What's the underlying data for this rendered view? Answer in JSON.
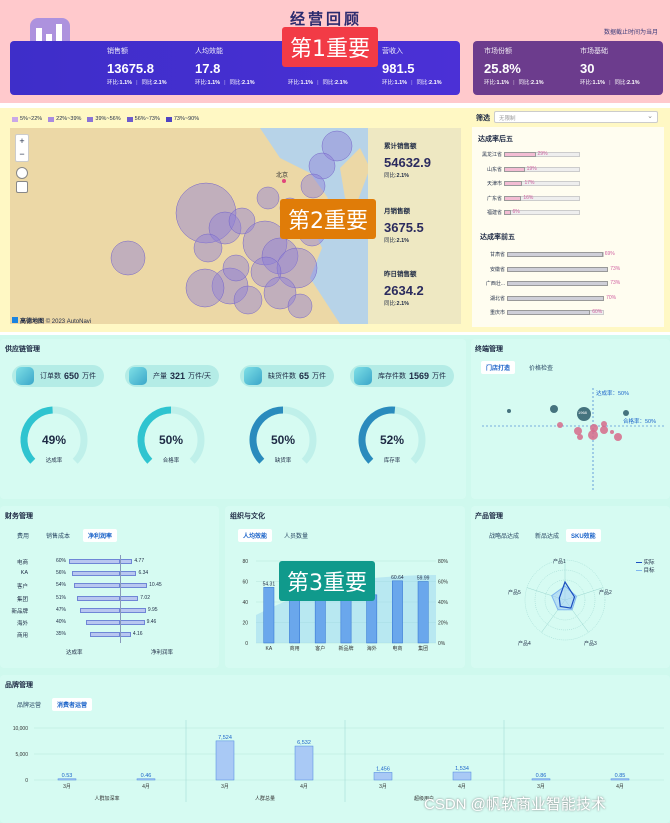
{
  "header": {
    "title": "经营回顾",
    "date_note": "数据截止时间为当月"
  },
  "kpis": [
    {
      "label": "销售额",
      "value": "13675.8",
      "mom_label": "环比:",
      "mom": "1.1%",
      "yoy_label": "同比:",
      "yoy": "2.1%"
    },
    {
      "label": "人均效能",
      "value": "17.8",
      "mom_label": "环比:",
      "mom": "1.1%",
      "yoy_label": "同比:",
      "yoy": "2.1%"
    },
    {
      "label": "",
      "value": "",
      "mom_label": "环比:",
      "mom": "1.1%",
      "yoy_label": "同比:",
      "yoy": "2.1%"
    },
    {
      "label": "营收入",
      "value": "981.5",
      "mom_label": "环比:",
      "mom": "1.1%",
      "yoy_label": "同比:",
      "yoy": "2.1%"
    },
    {
      "label": "市场份额",
      "value": "25.8%",
      "mom_label": "环比:",
      "mom": "1.1%",
      "yoy_label": "同比:",
      "yoy": "2.1%"
    },
    {
      "label": "市场基础",
      "value": "30",
      "mom_label": "环比:",
      "mom": "1.1%",
      "yoy_label": "同比:",
      "yoy": "2.1%"
    }
  ],
  "badges": {
    "b1": "第1重要",
    "b2": "第2重要",
    "b3": "第3重要"
  },
  "map": {
    "legend": [
      "5%~22%",
      "22%~39%",
      "39%~56%",
      "56%~73%",
      "73%~90%"
    ],
    "legend_colors": [
      "#c9a8e8",
      "#a98ce0",
      "#8b74d6",
      "#6d5ccc",
      "#4f44c2"
    ],
    "city": "北京",
    "attribution": "© 2023 AutoNavi",
    "brand": "高德地图",
    "stats": [
      {
        "label": "累计销售额",
        "value": "54632.9",
        "sub": "同比:",
        "sub_v": "2.1%"
      },
      {
        "label": "月销售额",
        "value": "3675.5",
        "sub": "同比:",
        "sub_v": "2.1%"
      },
      {
        "label": "昨日销售额",
        "value": "2634.2",
        "sub": "同比:",
        "sub_v": "2.1%"
      }
    ]
  },
  "filter": {
    "label": "筛选",
    "placeholder": "无限制"
  },
  "bottom5": {
    "title": "达成率后五",
    "rows": [
      {
        "name": "黑龙江省",
        "pct": "29%",
        "v": 29
      },
      {
        "name": "山东省",
        "pct": "19%",
        "v": 19
      },
      {
        "name": "天津市",
        "pct": "17%",
        "v": 17
      },
      {
        "name": "广东省",
        "pct": "16%",
        "v": 16
      },
      {
        "name": "福建省",
        "pct": "6%",
        "v": 6
      }
    ]
  },
  "top5": {
    "title": "达成率前五",
    "rows": [
      {
        "name": "甘肃省",
        "pct": "69%",
        "v": 69
      },
      {
        "name": "安徽省",
        "pct": "73%",
        "v": 73
      },
      {
        "name": "广西壮...",
        "pct": "73%",
        "v": 73
      },
      {
        "name": "湖北省",
        "pct": "70%",
        "v": 70
      },
      {
        "name": "重庆市",
        "pct": "60%",
        "v": 60
      }
    ]
  },
  "supply": {
    "title": "供应链管理",
    "pills": [
      {
        "label": "订单数",
        "value": "650",
        "unit": "万件"
      },
      {
        "label": "产量",
        "value": "321",
        "unit": "万件/天"
      },
      {
        "label": "缺货件数",
        "value": "65",
        "unit": "万件"
      },
      {
        "label": "库存件数",
        "value": "1569",
        "unit": "万件"
      }
    ],
    "gauges": [
      {
        "value": "49%",
        "label": "达成率",
        "pct": 49,
        "color": "#2fc4d0"
      },
      {
        "value": "50%",
        "label": "合格率",
        "pct": 50,
        "color": "#2fc4d0"
      },
      {
        "value": "50%",
        "label": "缺货率",
        "pct": 50,
        "color": "#2a8bbd"
      },
      {
        "value": "52%",
        "label": "库存率",
        "pct": 52,
        "color": "#2a8bbd"
      }
    ]
  },
  "terminal": {
    "title": "终端管理",
    "tabs": [
      "门店打造",
      "价格检查"
    ],
    "ref_h": "达成率：50%",
    "ref_v": "合格率：50%",
    "bubble_label": "1968"
  },
  "finance": {
    "title": "财务管理",
    "tabs": [
      "费用",
      "销售成本",
      "净利润率"
    ],
    "rows": [
      {
        "name": "电商",
        "pct": "60%",
        "val": "4.77",
        "l": 60,
        "r": 4.77
      },
      {
        "name": "KA",
        "pct": "56%",
        "val": "6.34",
        "l": 56,
        "r": 6.34
      },
      {
        "name": "客户",
        "pct": "54%",
        "val": "10.45",
        "l": 54,
        "r": 10.45
      },
      {
        "name": "集团",
        "pct": "51%",
        "val": "7.02",
        "l": 51,
        "r": 7.02
      },
      {
        "name": "新品牌",
        "pct": "47%",
        "val": "9.95",
        "l": 47,
        "r": 9.95
      },
      {
        "name": "海外",
        "pct": "40%",
        "val": "9.46",
        "l": 40,
        "r": 9.46
      },
      {
        "name": "商用",
        "pct": "35%",
        "val": "4.16",
        "l": 35,
        "r": 4.16
      }
    ],
    "foot_l": "达成率",
    "foot_r": "净利润率"
  },
  "org": {
    "title": "组织与文化",
    "tabs": [
      "人均效能",
      "人员数量"
    ],
    "categories": [
      "KA",
      "商用",
      "客户",
      "新品牌",
      "海外",
      "电商",
      "集团"
    ],
    "values": [
      54.31,
      48,
      46,
      44,
      47,
      60.64,
      59.99
    ],
    "labels": [
      "54.31",
      "",
      "",
      "",
      "",
      "60.64",
      "59.99"
    ],
    "yticks": [
      "0",
      "20",
      "40",
      "60",
      "80"
    ],
    "rticks": [
      "0%",
      "20%",
      "40%",
      "60%",
      "80%"
    ]
  },
  "product": {
    "title": "产品管理",
    "tabs": [
      "战略品达成",
      "新品达成",
      "SKU效能"
    ],
    "axes": [
      "产品1",
      "产品2",
      "产品3",
      "产品4",
      "产品5"
    ],
    "legend": [
      "实际",
      "目标"
    ]
  },
  "brand": {
    "title": "品牌管理",
    "tabs": [
      "品牌运营",
      "消费者运营"
    ],
    "yticks": [
      "0",
      "5,000",
      "10,000"
    ],
    "bars": [
      {
        "label": "0.53",
        "x": "3月",
        "v": 0.53
      },
      {
        "label": "0.46",
        "x": "4月",
        "v": 0.46
      },
      {
        "label": "7,524",
        "x": "3月",
        "v": 7524
      },
      {
        "label": "6,532",
        "x": "4月",
        "v": 6532
      },
      {
        "label": "1,456",
        "x": "3月",
        "v": 1456
      },
      {
        "label": "1,534",
        "x": "4月",
        "v": 1534
      },
      {
        "label": "0.86",
        "x": "3月",
        "v": 0.86
      },
      {
        "label": "0.85",
        "x": "4月",
        "v": 0.85
      }
    ],
    "groups": [
      "人群加深率",
      "人群总量",
      "超级用户"
    ],
    "watermark": "CSDN @帆软商业智能技术"
  }
}
